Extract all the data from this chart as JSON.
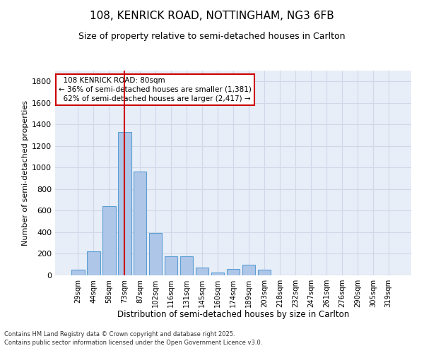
{
  "title_line1": "108, KENRICK ROAD, NOTTINGHAM, NG3 6FB",
  "title_line2": "Size of property relative to semi-detached houses in Carlton",
  "xlabel": "Distribution of semi-detached houses by size in Carlton",
  "ylabel": "Number of semi-detached properties",
  "bins": [
    "29sqm",
    "44sqm",
    "58sqm",
    "73sqm",
    "87sqm",
    "102sqm",
    "116sqm",
    "131sqm",
    "145sqm",
    "160sqm",
    "174sqm",
    "189sqm",
    "203sqm",
    "218sqm",
    "232sqm",
    "247sqm",
    "261sqm",
    "276sqm",
    "290sqm",
    "305sqm",
    "319sqm"
  ],
  "values": [
    50,
    220,
    640,
    1330,
    960,
    390,
    175,
    175,
    75,
    25,
    60,
    100,
    55,
    0,
    0,
    0,
    0,
    0,
    0,
    0,
    0
  ],
  "bar_color": "#aec6e8",
  "bar_edge_color": "#5a9fd4",
  "grid_color": "#d0d8e8",
  "background_color": "#e8eef8",
  "property_label": "108 KENRICK ROAD: 80sqm",
  "pct_smaller": 36,
  "count_smaller": 1381,
  "pct_larger": 62,
  "count_larger": 2417,
  "vline_color": "#cc0000",
  "annotation_box_color": "#cc0000",
  "vline_x": 3.0,
  "ylim": [
    0,
    1900
  ],
  "yticks": [
    0,
    200,
    400,
    600,
    800,
    1000,
    1200,
    1400,
    1600,
    1800
  ],
  "footnote_line1": "Contains HM Land Registry data © Crown copyright and database right 2025.",
  "footnote_line2": "Contains public sector information licensed under the Open Government Licence v3.0."
}
